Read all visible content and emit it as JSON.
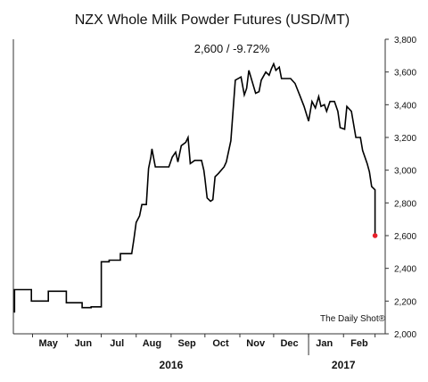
{
  "chart_data": {
    "type": "line",
    "title": "NZX Whole Milk Powder Futures (USD/MT)",
    "subtitle": "2,600  /  -9.72%",
    "watermark": "The Daily Shot®",
    "ylim": [
      2000,
      3800
    ],
    "yticks": [
      2000,
      2200,
      2400,
      2600,
      2800,
      3000,
      3200,
      3400,
      3600,
      3800
    ],
    "ytick_labels": [
      "2,000",
      "2,200",
      "2,400",
      "2,600",
      "2,800",
      "3,000",
      "3,200",
      "3,400",
      "3,600",
      "3,800"
    ],
    "x_start": "2016-04-14",
    "x_end": "2017-03-10",
    "months": [
      {
        "label": "May",
        "date": "2016-05-15"
      },
      {
        "label": "Jun",
        "date": "2016-06-15"
      },
      {
        "label": "Jul",
        "date": "2016-07-15"
      },
      {
        "label": "Aug",
        "date": "2016-08-15"
      },
      {
        "label": "Sep",
        "date": "2016-09-15"
      },
      {
        "label": "Oct",
        "date": "2016-10-15"
      },
      {
        "label": "Nov",
        "date": "2016-11-15"
      },
      {
        "label": "Dec",
        "date": "2016-12-15"
      },
      {
        "label": "Jan",
        "date": "2017-01-15"
      },
      {
        "label": "Feb",
        "date": "2017-02-15"
      }
    ],
    "month_boundaries": [
      "2016-05-01",
      "2016-06-01",
      "2016-07-01",
      "2016-08-01",
      "2016-09-01",
      "2016-10-01",
      "2016-11-01",
      "2016-12-01",
      "2017-01-01",
      "2017-02-01",
      "2017-03-01"
    ],
    "year_divider": "2017-01-01",
    "years": [
      {
        "label": "2016",
        "date": "2016-09-01"
      },
      {
        "label": "2017",
        "date": "2017-02-01"
      }
    ],
    "series": [
      {
        "color": "#000000",
        "points": [
          [
            "2016-04-15",
            2130
          ],
          [
            "2016-04-15",
            2270
          ],
          [
            "2016-04-30",
            2270
          ],
          [
            "2016-04-30",
            2200
          ],
          [
            "2016-05-15",
            2200
          ],
          [
            "2016-05-15",
            2260
          ],
          [
            "2016-05-31",
            2260
          ],
          [
            "2016-05-31",
            2190
          ],
          [
            "2016-06-14",
            2190
          ],
          [
            "2016-06-14",
            2160
          ],
          [
            "2016-06-22",
            2160
          ],
          [
            "2016-06-22",
            2165
          ],
          [
            "2016-07-01",
            2165
          ],
          [
            "2016-07-01",
            2440
          ],
          [
            "2016-07-08",
            2440
          ],
          [
            "2016-07-08",
            2450
          ],
          [
            "2016-07-18",
            2450
          ],
          [
            "2016-07-18",
            2490
          ],
          [
            "2016-07-28",
            2490
          ],
          [
            "2016-07-30",
            2580
          ],
          [
            "2016-08-01",
            2680
          ],
          [
            "2016-08-04",
            2720
          ],
          [
            "2016-08-06",
            2790
          ],
          [
            "2016-08-10",
            2790
          ],
          [
            "2016-08-12",
            3010
          ],
          [
            "2016-08-14",
            3080
          ],
          [
            "2016-08-15",
            3130
          ],
          [
            "2016-08-18",
            3020
          ],
          [
            "2016-08-30",
            3020
          ],
          [
            "2016-09-02",
            3080
          ],
          [
            "2016-09-05",
            3110
          ],
          [
            "2016-09-07",
            3050
          ],
          [
            "2016-09-10",
            3150
          ],
          [
            "2016-09-14",
            3170
          ],
          [
            "2016-09-16",
            3200
          ],
          [
            "2016-09-18",
            3040
          ],
          [
            "2016-09-22",
            3060
          ],
          [
            "2016-09-28",
            3060
          ],
          [
            "2016-09-30",
            3000
          ],
          [
            "2016-10-01",
            2950
          ],
          [
            "2016-10-03",
            2830
          ],
          [
            "2016-10-06",
            2810
          ],
          [
            "2016-10-08",
            2820
          ],
          [
            "2016-10-10",
            2960
          ],
          [
            "2016-10-13",
            2980
          ],
          [
            "2016-10-18",
            3020
          ],
          [
            "2016-10-20",
            3050
          ],
          [
            "2016-10-24",
            3180
          ],
          [
            "2016-10-28",
            3550
          ],
          [
            "2016-11-02",
            3570
          ],
          [
            "2016-11-05",
            3460
          ],
          [
            "2016-11-07",
            3500
          ],
          [
            "2016-11-09",
            3610
          ],
          [
            "2016-11-12",
            3540
          ],
          [
            "2016-11-15",
            3470
          ],
          [
            "2016-11-18",
            3480
          ],
          [
            "2016-11-20",
            3550
          ],
          [
            "2016-11-24",
            3600
          ],
          [
            "2016-11-27",
            3580
          ],
          [
            "2016-11-29",
            3620
          ],
          [
            "2016-12-01",
            3650
          ],
          [
            "2016-12-03",
            3610
          ],
          [
            "2016-12-06",
            3630
          ],
          [
            "2016-12-08",
            3560
          ],
          [
            "2016-12-16",
            3560
          ],
          [
            "2016-12-20",
            3530
          ],
          [
            "2016-12-24",
            3460
          ],
          [
            "2016-12-28",
            3390
          ],
          [
            "2017-01-01",
            3300
          ],
          [
            "2017-01-04",
            3420
          ],
          [
            "2017-01-07",
            3380
          ],
          [
            "2017-01-10",
            3450
          ],
          [
            "2017-01-12",
            3390
          ],
          [
            "2017-01-15",
            3400
          ],
          [
            "2017-01-17",
            3360
          ],
          [
            "2017-01-20",
            3420
          ],
          [
            "2017-01-24",
            3420
          ],
          [
            "2017-01-27",
            3360
          ],
          [
            "2017-01-29",
            3260
          ],
          [
            "2017-02-02",
            3250
          ],
          [
            "2017-02-04",
            3390
          ],
          [
            "2017-02-08",
            3360
          ],
          [
            "2017-02-12",
            3200
          ],
          [
            "2017-02-16",
            3200
          ],
          [
            "2017-02-18",
            3120
          ],
          [
            "2017-02-22",
            3040
          ],
          [
            "2017-02-24",
            2990
          ],
          [
            "2017-02-26",
            2900
          ],
          [
            "2017-03-01",
            2880
          ],
          [
            "2017-03-01",
            2600
          ]
        ]
      }
    ],
    "last_point": {
      "date": "2017-03-01",
      "value": 2600,
      "color": "#e8202a"
    }
  }
}
